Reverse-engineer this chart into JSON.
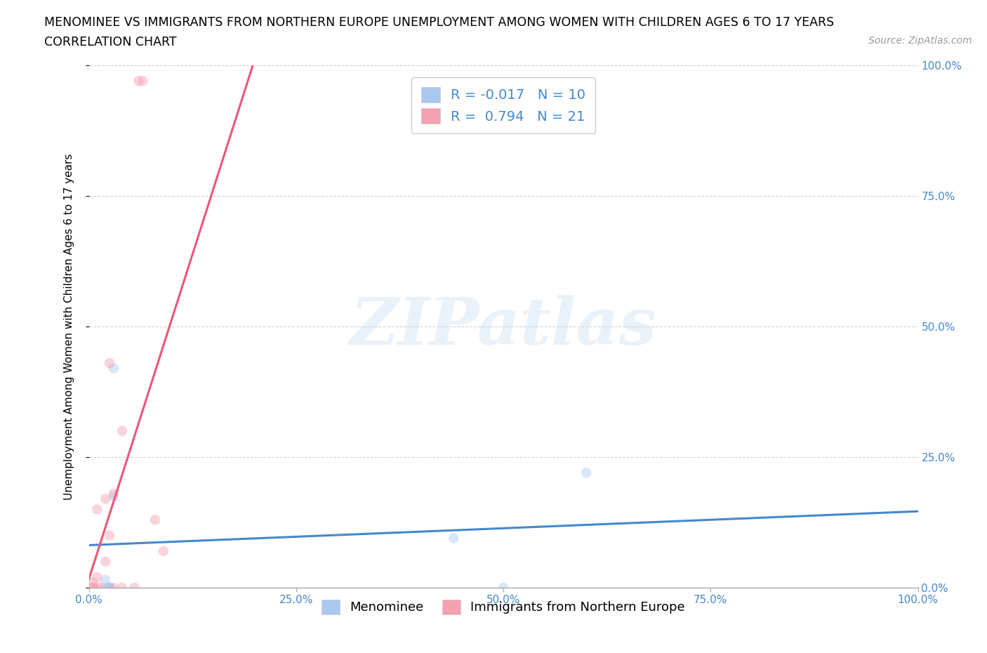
{
  "title_line1": "MENOMINEE VS IMMIGRANTS FROM NORTHERN EUROPE UNEMPLOYMENT AMONG WOMEN WITH CHILDREN AGES 6 TO 17 YEARS",
  "title_line2": "CORRELATION CHART",
  "source": "Source: ZipAtlas.com",
  "ylabel": "Unemployment Among Women with Children Ages 6 to 17 years",
  "xlim": [
    0,
    1.0
  ],
  "ylim": [
    0,
    1.0
  ],
  "xtick_values": [
    0,
    0.25,
    0.5,
    0.75,
    1.0
  ],
  "xtick_labels": [
    "0.0%",
    "25.0%",
    "50.0%",
    "75.0%",
    "100.0%"
  ],
  "ytick_values": [
    0,
    0.25,
    0.5,
    0.75,
    1.0
  ],
  "ytick_labels": [
    "0.0%",
    "25.0%",
    "50.0%",
    "75.0%",
    "100.0%"
  ],
  "menominee_x": [
    0.02,
    0.02,
    0.025,
    0.025,
    0.025,
    0.03,
    0.03,
    0.6,
    0.44,
    0.5
  ],
  "menominee_y": [
    0.0,
    0.015,
    0.0,
    0.0,
    0.0,
    0.175,
    0.42,
    0.22,
    0.095,
    0.0
  ],
  "immigrants_x": [
    0.005,
    0.005,
    0.005,
    0.005,
    0.01,
    0.01,
    0.01,
    0.015,
    0.02,
    0.02,
    0.025,
    0.025,
    0.03,
    0.03,
    0.04,
    0.04,
    0.055,
    0.06,
    0.065,
    0.08,
    0.09
  ],
  "immigrants_y": [
    0.0,
    0.0,
    0.0,
    0.01,
    0.0,
    0.02,
    0.15,
    0.0,
    0.05,
    0.17,
    0.1,
    0.43,
    0.0,
    0.18,
    0.3,
    0.0,
    0.0,
    0.97,
    0.97,
    0.13,
    0.07
  ],
  "menominee_color": "#a8c8f0",
  "immigrants_color": "#f5a0b0",
  "menominee_line_color": "#4488cc",
  "immigrants_line_color": "#ee5577",
  "R_menominee": -0.017,
  "N_menominee": 10,
  "R_immigrants": 0.794,
  "N_immigrants": 21,
  "legend_label_1": "Menominee",
  "legend_label_2": "Immigrants from Northern Europe",
  "watermark_text": "ZIPatlas",
  "grid_color": "#cccccc",
  "background_color": "#ffffff",
  "marker_size": 110,
  "marker_alpha": 0.45,
  "title_fontsize": 12.5,
  "subtitle_fontsize": 12.5,
  "axis_label_fontsize": 11,
  "tick_fontsize": 11,
  "legend_fontsize": 14
}
